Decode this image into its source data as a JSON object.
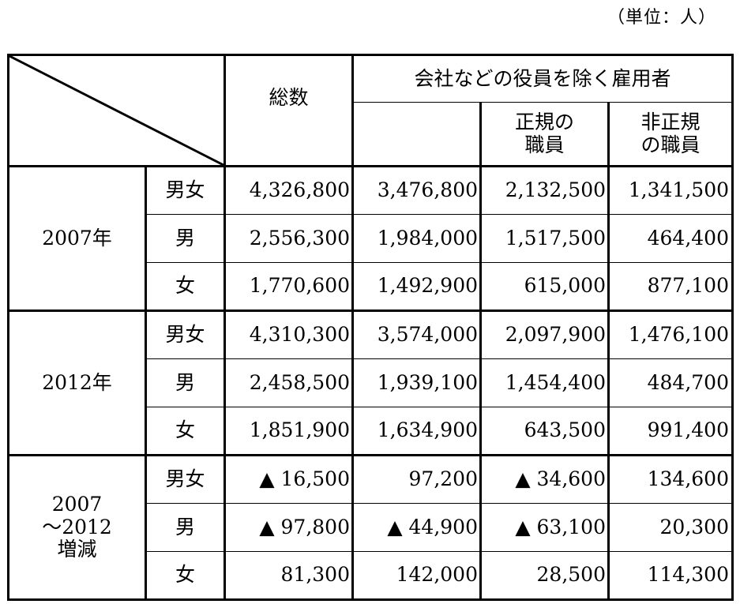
{
  "unit": "（単位：人）",
  "header": {
    "total": "総数",
    "employees": "会社などの役員を除く雇用者",
    "regular": [
      "正規の",
      "職員"
    ],
    "non_regular": [
      "非正規",
      "の職員"
    ]
  },
  "groups": [
    {
      "year_lines": [
        "2007年"
      ],
      "rows": [
        {
          "sub": "男女",
          "values": [
            "4,326,800",
            "3,476,800",
            "2,132,500",
            "1,341,500"
          ]
        },
        {
          "sub": "男",
          "values": [
            "2,556,300",
            "1,984,000",
            "1,517,500",
            "464,400"
          ]
        },
        {
          "sub": "女",
          "values": [
            "1,770,600",
            "1,492,900",
            "615,000",
            "877,100"
          ]
        }
      ]
    },
    {
      "year_lines": [
        "2012年"
      ],
      "rows": [
        {
          "sub": "男女",
          "values": [
            "4,310,300",
            "3,574,000",
            "2,097,900",
            "1,476,100"
          ]
        },
        {
          "sub": "男",
          "values": [
            "2,458,500",
            "1,939,100",
            "1,454,400",
            "484,700"
          ]
        },
        {
          "sub": "女",
          "values": [
            "1,851,900",
            "1,634,900",
            "643,500",
            "991,400"
          ]
        }
      ]
    },
    {
      "year_lines": [
        "2007",
        "～2012",
        "増減"
      ],
      "rows": [
        {
          "sub": "男女",
          "values": [
            "▲ 16,500",
            "97,200",
            "▲ 34,600",
            "134,600"
          ]
        },
        {
          "sub": "男",
          "values": [
            "▲ 97,800",
            "▲ 44,900",
            "▲ 63,100",
            "20,300"
          ]
        },
        {
          "sub": "女",
          "values": [
            "81,300",
            "142,000",
            "28,500",
            "114,300"
          ]
        }
      ]
    }
  ]
}
